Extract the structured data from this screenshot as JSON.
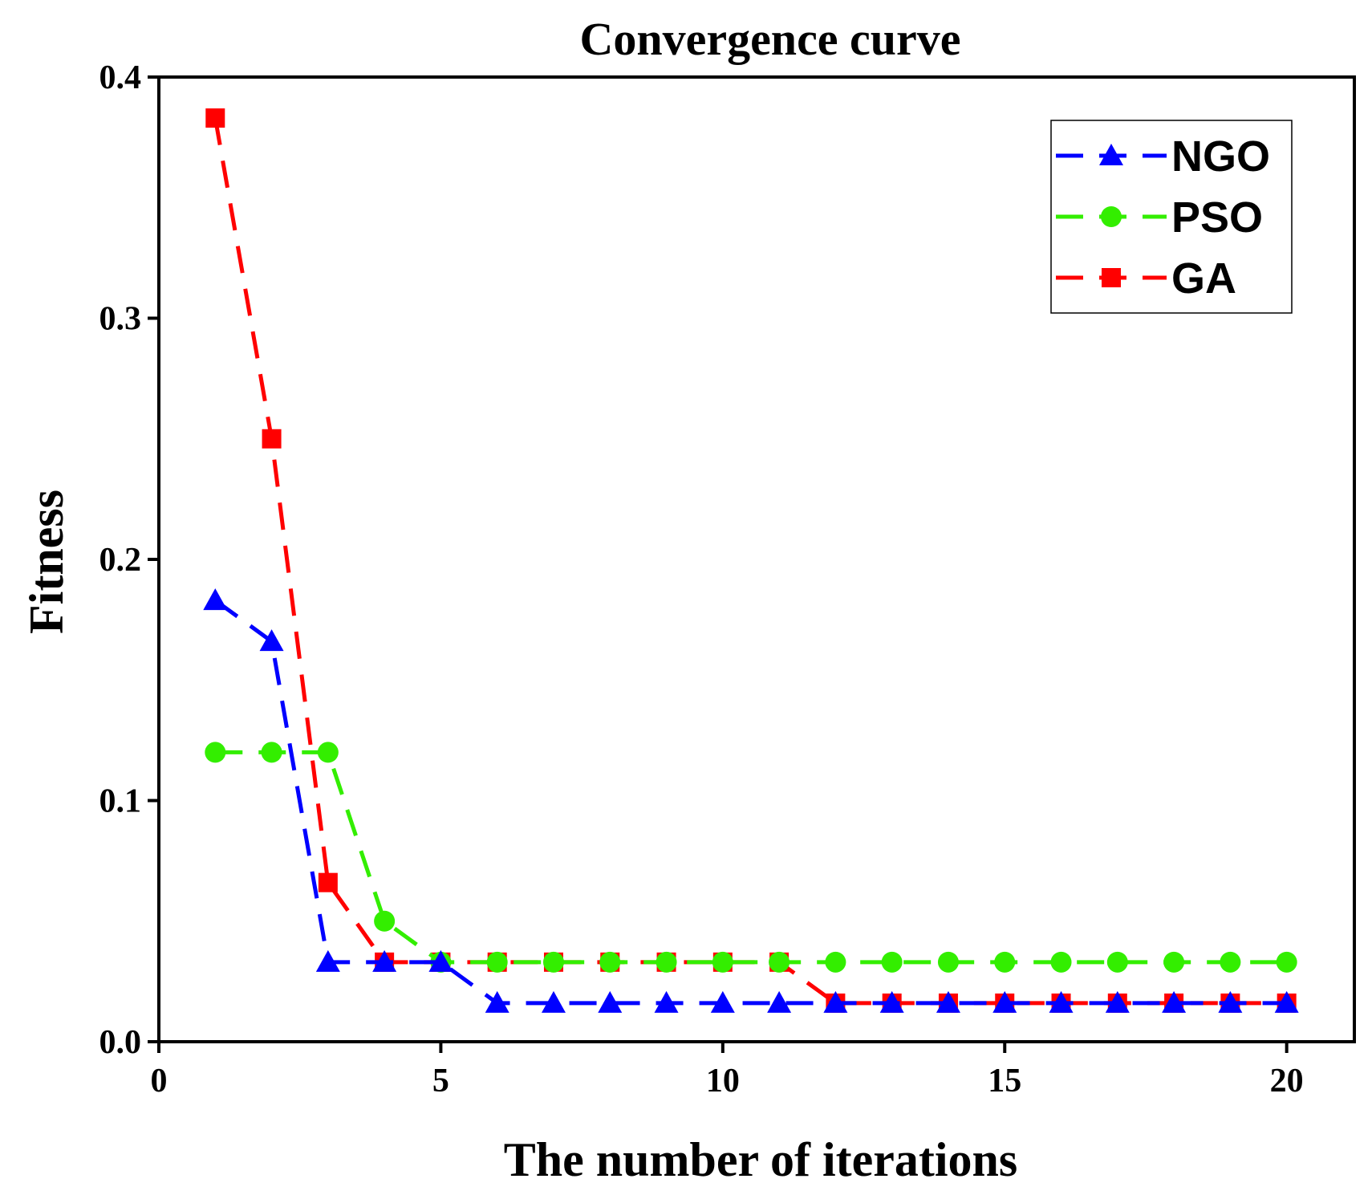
{
  "chart_data": {
    "type": "line",
    "title": "Convergence curve",
    "xlabel": "The number of iterations",
    "ylabel": "Fitness",
    "xlim": [
      0,
      21.2
    ],
    "ylim": [
      0,
      0.4
    ],
    "xticks": [
      0,
      5,
      10,
      15,
      20
    ],
    "yticks": [
      0.0,
      0.1,
      0.2,
      0.3,
      0.4
    ],
    "xtick_labels": [
      "0",
      "5",
      "10",
      "15",
      "20"
    ],
    "ytick_labels": [
      "0.0",
      "0.1",
      "0.2",
      "0.3",
      "0.4"
    ],
    "grid": false,
    "legend_position": "top-right",
    "x": [
      1,
      2,
      3,
      4,
      5,
      6,
      7,
      8,
      9,
      10,
      11,
      12,
      13,
      14,
      15,
      16,
      17,
      18,
      19,
      20
    ],
    "series": [
      {
        "name": "GA",
        "color": "#ff0000",
        "marker": "square",
        "values": [
          0.383,
          0.25,
          0.066,
          0.033,
          0.033,
          0.033,
          0.033,
          0.033,
          0.033,
          0.033,
          0.033,
          0.016,
          0.016,
          0.016,
          0.016,
          0.016,
          0.016,
          0.016,
          0.016,
          0.016
        ]
      },
      {
        "name": "PSO",
        "color": "#33ee00",
        "marker": "circle",
        "values": [
          0.12,
          0.12,
          0.12,
          0.05,
          0.033,
          0.033,
          0.033,
          0.033,
          0.033,
          0.033,
          0.033,
          0.033,
          0.033,
          0.033,
          0.033,
          0.033,
          0.033,
          0.033,
          0.033,
          0.033
        ]
      },
      {
        "name": "NGO",
        "color": "#0000ff",
        "marker": "triangle",
        "values": [
          0.183,
          0.166,
          0.033,
          0.033,
          0.033,
          0.016,
          0.016,
          0.016,
          0.016,
          0.016,
          0.016,
          0.016,
          0.016,
          0.016,
          0.016,
          0.016,
          0.016,
          0.016,
          0.016,
          0.016
        ]
      }
    ],
    "legend_order": [
      "NGO",
      "PSO",
      "GA"
    ]
  }
}
